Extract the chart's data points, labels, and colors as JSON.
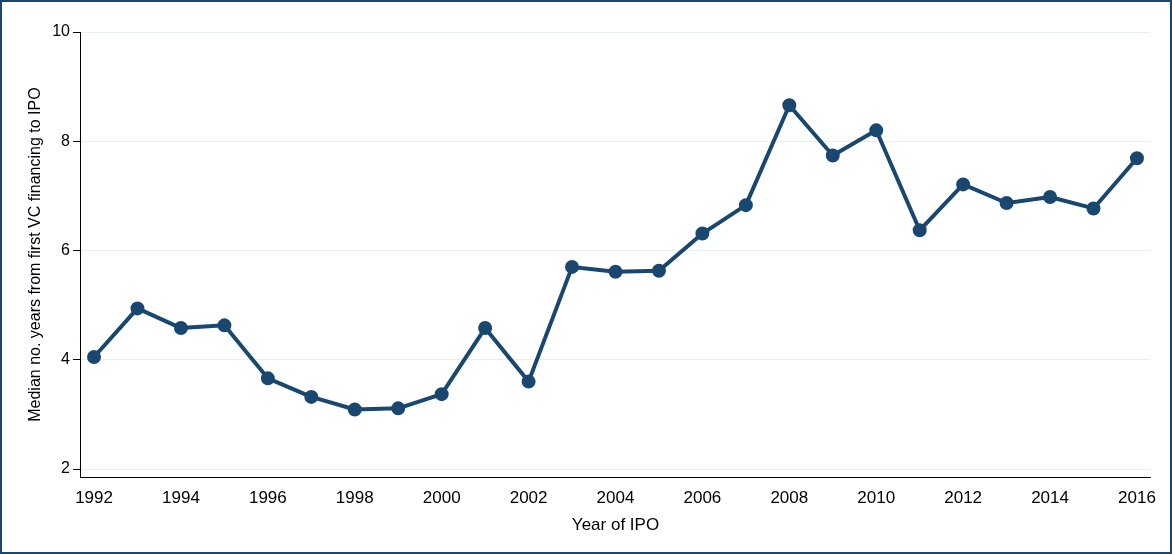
{
  "chart_data": {
    "type": "line",
    "xlabel": "Year of IPO",
    "ylabel": "Median no. years from first VC financing to IPO",
    "x": [
      1992,
      1993,
      1994,
      1995,
      1996,
      1997,
      1998,
      1999,
      2000,
      2001,
      2002,
      2003,
      2004,
      2005,
      2006,
      2007,
      2008,
      2009,
      2010,
      2011,
      2012,
      2013,
      2014,
      2015,
      2016
    ],
    "series": [
      {
        "color": "#1a476f",
        "values": [
          4.05,
          4.94,
          4.58,
          4.63,
          3.66,
          3.32,
          3.09,
          3.11,
          3.37,
          4.58,
          3.6,
          5.7,
          5.61,
          5.63,
          6.31,
          6.83,
          8.66,
          7.74,
          8.2,
          6.37,
          7.21,
          6.87,
          6.98,
          6.77,
          7.69
        ]
      }
    ],
    "xlim": [
      1991.7,
      2016.3
    ],
    "xticks": [
      1992,
      1994,
      1996,
      1998,
      2000,
      2002,
      2004,
      2006,
      2008,
      2010,
      2012,
      2014,
      2016
    ],
    "ylim": [
      1.85,
      10
    ],
    "yticks": [
      2,
      4,
      6,
      8,
      10
    ],
    "grid": "y",
    "legend": false,
    "marker": "circle",
    "line_style": "solid"
  }
}
